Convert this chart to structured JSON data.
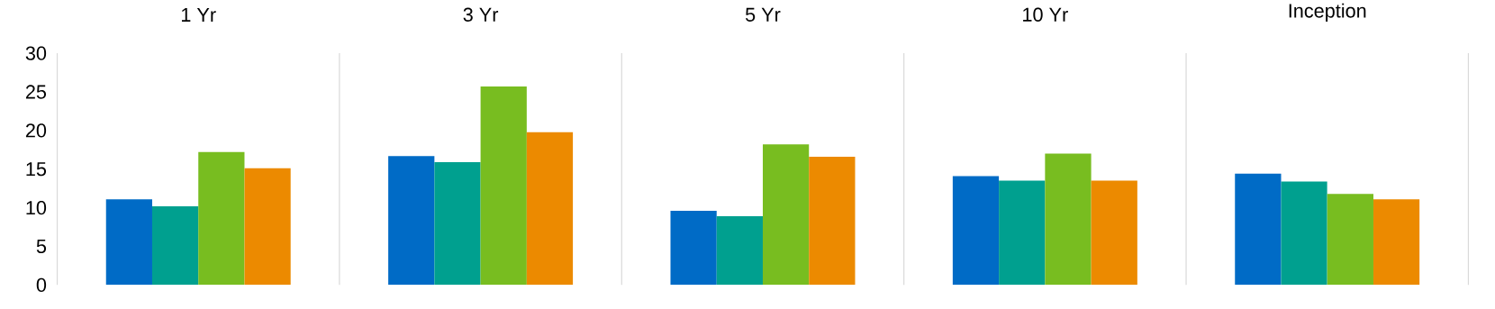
{
  "chart_data": {
    "type": "bar",
    "categories": [
      "1 Yr",
      "3 Yr",
      "5 Yr",
      "10 Yr",
      "Inception"
    ],
    "series": [
      {
        "color": "#006bc6",
        "values": [
          11.1,
          16.7,
          9.6,
          14.1,
          14.4
        ]
      },
      {
        "color": "#00a08f",
        "values": [
          10.2,
          15.9,
          8.9,
          13.5,
          13.4
        ]
      },
      {
        "color": "#78bd20",
        "values": [
          17.2,
          25.7,
          18.2,
          17.0,
          11.8
        ]
      },
      {
        "color": "#ec8a00",
        "values": [
          15.1,
          19.8,
          16.6,
          13.5,
          11.1
        ]
      }
    ],
    "ylim": [
      0,
      30
    ],
    "yticks": [
      0,
      5,
      10,
      15,
      20,
      25,
      30
    ],
    "grid": "x"
  }
}
